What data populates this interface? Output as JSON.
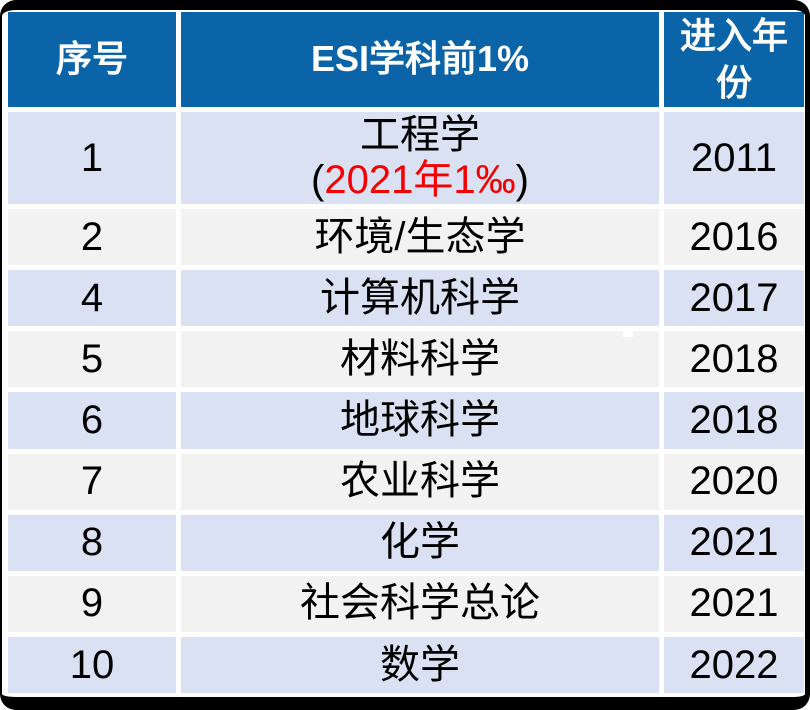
{
  "table": {
    "title": "ESI disciplines table",
    "columns": [
      {
        "key": "index",
        "label": "序号"
      },
      {
        "key": "discipline",
        "label": "ESI学科前1%"
      },
      {
        "key": "year",
        "label": "进入年份"
      }
    ],
    "rows": [
      {
        "index": "1",
        "discipline": "工程学",
        "note_prefix": "(",
        "note_red": "2021年1‰",
        "note_suffix": ")",
        "year": "2011"
      },
      {
        "index": "2",
        "discipline": "环境/生态学",
        "year": "2016"
      },
      {
        "index": "4",
        "discipline": "计算机科学",
        "year": "2017"
      },
      {
        "index": "5",
        "discipline": "材料科学",
        "year": "2018"
      },
      {
        "index": "6",
        "discipline": "地球科学",
        "year": "2018"
      },
      {
        "index": "7",
        "discipline": "农业科学",
        "year": "2020"
      },
      {
        "index": "8",
        "discipline": "化学",
        "year": "2021"
      },
      {
        "index": "9",
        "discipline": "社会科学总论",
        "year": "2021"
      },
      {
        "index": "10",
        "discipline": "数学",
        "year": "2022"
      }
    ]
  },
  "colors": {
    "header_bg": "#0C64A8",
    "header_text": "#ffffff",
    "row_blue": "#D9E1F2",
    "row_gray": "#F2F2F2",
    "body_text": "#000000",
    "note_red": "#F50000",
    "frame": "#000000",
    "gap": "#ffffff"
  }
}
